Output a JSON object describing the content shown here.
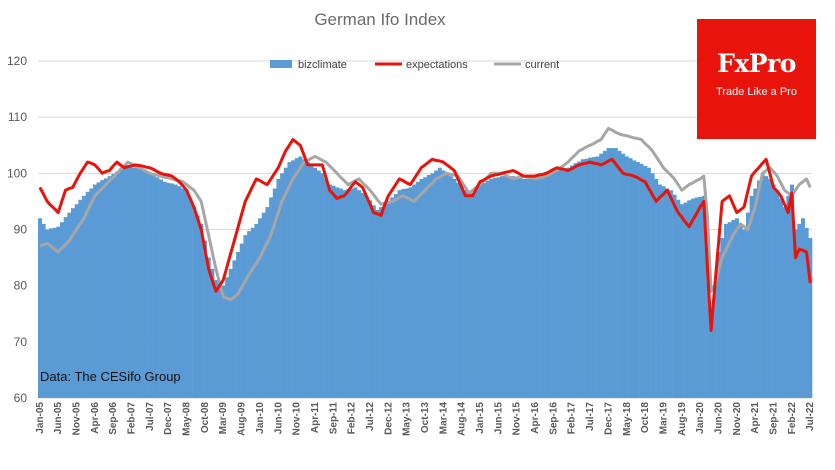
{
  "brand": {
    "name": "FxPro",
    "slogan": "Trade Like a Pro",
    "color": "#e8140c"
  },
  "chart_data": {
    "type": "bar+line",
    "title": "German Ifo Index",
    "source_note": "Data: The CESifo Group",
    "ylim": [
      60,
      120
    ],
    "yticks": [
      60,
      70,
      80,
      90,
      100,
      110,
      120
    ],
    "grid": true,
    "legend_position": "top",
    "x_start": "Jan-05",
    "x_end": "Jul-22",
    "x_tick_labels": [
      "Jan-05",
      "Jun-05",
      "Nov-05",
      "Apr-06",
      "Sep-06",
      "Feb-07",
      "Jul-07",
      "Dec-07",
      "May-08",
      "Oct-08",
      "Mar-09",
      "Aug-09",
      "Jan-10",
      "Jun-10",
      "Nov-10",
      "Apr-11",
      "Sep-11",
      "Feb-12",
      "Jul-12",
      "Dec-12",
      "May-13",
      "Oct-13",
      "Mar-14",
      "Aug-14",
      "Jan-15",
      "Jun-15",
      "Nov-15",
      "Apr-16",
      "Sep-16",
      "Feb-17",
      "Jul-17",
      "Dec-17",
      "May-18",
      "Oct-18",
      "Mar-19",
      "Aug-19",
      "Jan-20",
      "Jun-20",
      "Nov-20",
      "Apr-21",
      "Sep-21",
      "Feb-22",
      "Jul-22"
    ],
    "tick_every_months": 5,
    "series": [
      {
        "name": "bizclimate",
        "kind": "bar",
        "color": "#5b9bd5",
        "anchors": [
          [
            "Jan-05",
            92
          ],
          [
            "Mar-05",
            90
          ],
          [
            "Jun-05",
            90.5
          ],
          [
            "Sep-05",
            93
          ],
          [
            "Jan-06",
            96
          ],
          [
            "Apr-06",
            98
          ],
          [
            "Aug-06",
            99.5
          ],
          [
            "Dec-06",
            101
          ],
          [
            "Mar-07",
            101
          ],
          [
            "Jul-07",
            100
          ],
          [
            "Nov-07",
            98.5
          ],
          [
            "Feb-08",
            98
          ],
          [
            "May-08",
            97
          ],
          [
            "Jul-08",
            94
          ],
          [
            "Sep-08",
            91
          ],
          [
            "Nov-08",
            85
          ],
          [
            "Jan-09",
            81
          ],
          [
            "Mar-09",
            80
          ],
          [
            "May-09",
            83
          ],
          [
            "Jul-09",
            86
          ],
          [
            "Sep-09",
            89
          ],
          [
            "Dec-09",
            91
          ],
          [
            "Mar-10",
            94
          ],
          [
            "Jun-10",
            99
          ],
          [
            "Sep-10",
            102
          ],
          [
            "Dec-10",
            103
          ],
          [
            "Feb-11",
            102
          ],
          [
            "Apr-11",
            101
          ],
          [
            "Jun-11",
            100
          ],
          [
            "Aug-11",
            98
          ],
          [
            "Dec-11",
            97
          ],
          [
            "Mar-12",
            97.5
          ],
          [
            "Jun-12",
            96
          ],
          [
            "Sep-12",
            93.5
          ],
          [
            "Dec-12",
            95
          ],
          [
            "Mar-13",
            97
          ],
          [
            "Jun-13",
            97.5
          ],
          [
            "Sep-13",
            99
          ],
          [
            "Dec-13",
            100
          ],
          [
            "Feb-14",
            101
          ],
          [
            "Apr-14",
            100
          ],
          [
            "Jun-14",
            99
          ],
          [
            "Sep-14",
            97
          ],
          [
            "Nov-14",
            96.5
          ],
          [
            "Jan-15",
            98
          ],
          [
            "Apr-15",
            99
          ],
          [
            "Jul-15",
            99.5
          ],
          [
            "Oct-15",
            99.5
          ],
          [
            "Jan-16",
            99
          ],
          [
            "Apr-16",
            99
          ],
          [
            "Jul-16",
            99.5
          ],
          [
            "Oct-16",
            100.5
          ],
          [
            "Jan-17",
            101
          ],
          [
            "May-17",
            102.5
          ],
          [
            "Sep-17",
            103
          ],
          [
            "Dec-17",
            104.5
          ],
          [
            "Feb-18",
            104.5
          ],
          [
            "May-18",
            103
          ],
          [
            "Aug-18",
            102
          ],
          [
            "Nov-18",
            101
          ],
          [
            "Feb-19",
            98
          ],
          [
            "May-19",
            97
          ],
          [
            "Aug-19",
            94.5
          ],
          [
            "Nov-19",
            95.5
          ],
          [
            "Feb-20",
            96
          ],
          [
            "Mar-20",
            86
          ],
          [
            "Apr-20",
            76
          ],
          [
            "May-20",
            80
          ],
          [
            "Jun-20",
            86
          ],
          [
            "Aug-20",
            91
          ],
          [
            "Nov-20",
            92
          ],
          [
            "Jan-21",
            90
          ],
          [
            "Mar-21",
            96
          ],
          [
            "Jun-21",
            100
          ],
          [
            "Aug-21",
            99
          ],
          [
            "Oct-21",
            97
          ],
          [
            "Dec-21",
            94
          ],
          [
            "Feb-22",
            98
          ],
          [
            "Mar-22",
            90
          ],
          [
            "May-22",
            92
          ],
          [
            "Jul-22",
            88.5
          ]
        ]
      },
      {
        "name": "expectations",
        "kind": "line",
        "color": "#e8140c",
        "anchors": [
          [
            "Jan-05",
            97.5
          ],
          [
            "Mar-05",
            95
          ],
          [
            "Jun-05",
            93
          ],
          [
            "Aug-05",
            97
          ],
          [
            "Oct-05",
            97.5
          ],
          [
            "Dec-05",
            100
          ],
          [
            "Feb-06",
            102
          ],
          [
            "Apr-06",
            101.5
          ],
          [
            "Jun-06",
            100
          ],
          [
            "Aug-06",
            100.5
          ],
          [
            "Oct-06",
            102
          ],
          [
            "Dec-06",
            101
          ],
          [
            "Mar-07",
            101.5
          ],
          [
            "Jul-07",
            101
          ],
          [
            "Oct-07",
            100
          ],
          [
            "Jan-08",
            99.5
          ],
          [
            "Mar-08",
            98.5
          ],
          [
            "May-08",
            97
          ],
          [
            "Jul-08",
            94
          ],
          [
            "Sep-08",
            90
          ],
          [
            "Nov-08",
            83
          ],
          [
            "Jan-09",
            79
          ],
          [
            "Mar-09",
            81
          ],
          [
            "Jun-09",
            88
          ],
          [
            "Sep-09",
            95
          ],
          [
            "Dec-09",
            99
          ],
          [
            "Mar-10",
            98
          ],
          [
            "Jun-10",
            101
          ],
          [
            "Aug-10",
            104
          ],
          [
            "Oct-10",
            106
          ],
          [
            "Dec-10",
            105
          ],
          [
            "Feb-11",
            101.5
          ],
          [
            "Jun-11",
            101.5
          ],
          [
            "Aug-11",
            97
          ],
          [
            "Oct-11",
            95.5
          ],
          [
            "Dec-11",
            96
          ],
          [
            "Mar-12",
            98.5
          ],
          [
            "May-12",
            97.5
          ],
          [
            "Aug-12",
            93
          ],
          [
            "Oct-12",
            92.5
          ],
          [
            "Dec-12",
            96
          ],
          [
            "Mar-13",
            99
          ],
          [
            "Jun-13",
            98
          ],
          [
            "Sep-13",
            101
          ],
          [
            "Dec-13",
            102.5
          ],
          [
            "Mar-14",
            102
          ],
          [
            "Jun-14",
            100.5
          ],
          [
            "Sep-14",
            96
          ],
          [
            "Nov-14",
            96
          ],
          [
            "Jan-15",
            98.5
          ],
          [
            "Apr-15",
            99.5
          ],
          [
            "Jul-15",
            100
          ],
          [
            "Oct-15",
            100.5
          ],
          [
            "Jan-16",
            99.5
          ],
          [
            "Apr-16",
            99.5
          ],
          [
            "Jul-16",
            100
          ],
          [
            "Oct-16",
            101
          ],
          [
            "Jan-17",
            100.5
          ],
          [
            "Apr-17",
            101.5
          ],
          [
            "Jul-17",
            102
          ],
          [
            "Oct-17",
            101.5
          ],
          [
            "Jan-18",
            102.5
          ],
          [
            "Apr-18",
            100
          ],
          [
            "Jul-18",
            99.5
          ],
          [
            "Oct-18",
            98.5
          ],
          [
            "Jan-19",
            95
          ],
          [
            "Apr-19",
            97
          ],
          [
            "Jul-19",
            93
          ],
          [
            "Oct-19",
            90.5
          ],
          [
            "Jan-20",
            94
          ],
          [
            "Feb-20",
            95
          ],
          [
            "Mar-20",
            83
          ],
          [
            "Apr-20",
            72
          ],
          [
            "May-20",
            80
          ],
          [
            "Jul-20",
            95
          ],
          [
            "Sep-20",
            96
          ],
          [
            "Nov-20",
            93
          ],
          [
            "Jan-21",
            94
          ],
          [
            "Mar-21",
            99.5
          ],
          [
            "May-21",
            101
          ],
          [
            "Jul-21",
            102.5
          ],
          [
            "Sep-21",
            97.5
          ],
          [
            "Nov-21",
            96
          ],
          [
            "Jan-22",
            93
          ],
          [
            "Feb-22",
            96.5
          ],
          [
            "Mar-22",
            85
          ],
          [
            "Apr-22",
            86.5
          ],
          [
            "Jun-22",
            86
          ],
          [
            "Jul-22",
            80.5
          ]
        ]
      },
      {
        "name": "current",
        "kind": "line",
        "color": "#a6a6a6",
        "anchors": [
          [
            "Jan-05",
            87
          ],
          [
            "Mar-05",
            87.5
          ],
          [
            "Jun-05",
            86
          ],
          [
            "Sep-05",
            88
          ],
          [
            "Jan-06",
            92
          ],
          [
            "Apr-06",
            96
          ],
          [
            "Jul-06",
            98
          ],
          [
            "Oct-06",
            100
          ],
          [
            "Jan-07",
            102
          ],
          [
            "Apr-07",
            101
          ],
          [
            "Jul-07",
            100
          ],
          [
            "Oct-07",
            99.5
          ],
          [
            "Jan-08",
            99
          ],
          [
            "Apr-08",
            98.5
          ],
          [
            "Jul-08",
            97
          ],
          [
            "Sep-08",
            95
          ],
          [
            "Nov-08",
            89
          ],
          [
            "Jan-09",
            83
          ],
          [
            "Mar-09",
            78
          ],
          [
            "May-09",
            77.5
          ],
          [
            "Jul-09",
            78.5
          ],
          [
            "Oct-09",
            82
          ],
          [
            "Jan-10",
            85
          ],
          [
            "Apr-10",
            89
          ],
          [
            "Jul-10",
            95
          ],
          [
            "Oct-10",
            99
          ],
          [
            "Jan-11",
            102
          ],
          [
            "Apr-11",
            103
          ],
          [
            "Jul-11",
            102
          ],
          [
            "Oct-11",
            100
          ],
          [
            "Jan-12",
            98
          ],
          [
            "Apr-12",
            99
          ],
          [
            "Jul-12",
            97
          ],
          [
            "Oct-12",
            94.5
          ],
          [
            "Jan-13",
            95
          ],
          [
            "Apr-13",
            96
          ],
          [
            "Jul-13",
            95
          ],
          [
            "Oct-13",
            97
          ],
          [
            "Jan-14",
            99
          ],
          [
            "Apr-14",
            100
          ],
          [
            "Jul-14",
            99.5
          ],
          [
            "Oct-14",
            96.5
          ],
          [
            "Jan-15",
            98
          ],
          [
            "Apr-15",
            100
          ],
          [
            "Jul-15",
            100
          ],
          [
            "Oct-15",
            99
          ],
          [
            "Jan-16",
            99.5
          ],
          [
            "Apr-16",
            99
          ],
          [
            "Jul-16",
            99.5
          ],
          [
            "Oct-16",
            100.5
          ],
          [
            "Jan-17",
            102
          ],
          [
            "Apr-17",
            104
          ],
          [
            "Jul-17",
            105
          ],
          [
            "Oct-17",
            106
          ],
          [
            "Dec-17",
            108
          ],
          [
            "Mar-18",
            107
          ],
          [
            "Jun-18",
            106.5
          ],
          [
            "Sep-18",
            106
          ],
          [
            "Dec-18",
            104
          ],
          [
            "Mar-19",
            101
          ],
          [
            "Jun-19",
            99
          ],
          [
            "Aug-19",
            97
          ],
          [
            "Oct-19",
            98
          ],
          [
            "Jan-20",
            99
          ],
          [
            "Feb-20",
            99.5
          ],
          [
            "Mar-20",
            92
          ],
          [
            "Apr-20",
            79
          ],
          [
            "May-20",
            80
          ],
          [
            "Jul-20",
            85
          ],
          [
            "Oct-20",
            89
          ],
          [
            "Dec-20",
            91
          ],
          [
            "Feb-21",
            90
          ],
          [
            "Apr-21",
            94
          ],
          [
            "Jun-21",
            100
          ],
          [
            "Aug-21",
            101
          ],
          [
            "Oct-21",
            99.5
          ],
          [
            "Dec-21",
            97
          ],
          [
            "Feb-22",
            96
          ],
          [
            "Apr-22",
            98
          ],
          [
            "Jun-22",
            99
          ],
          [
            "Jul-22",
            97.5
          ]
        ]
      }
    ]
  }
}
